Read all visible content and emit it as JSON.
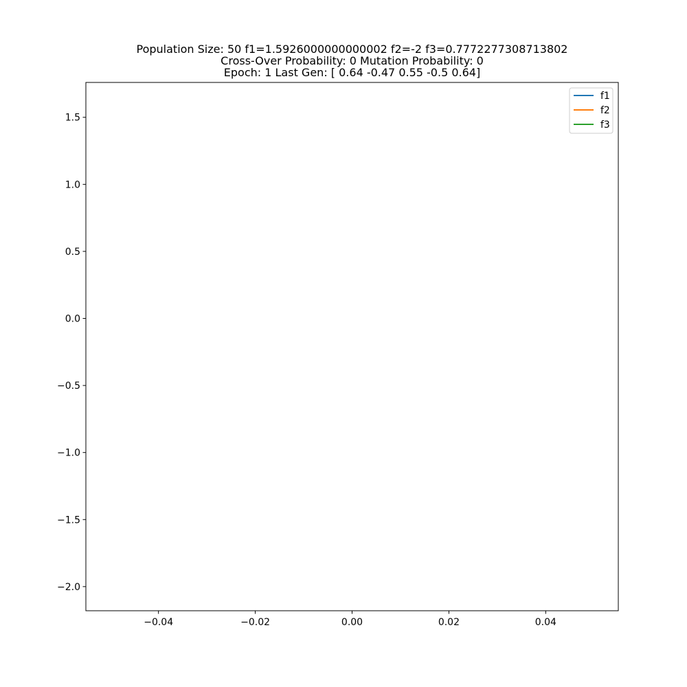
{
  "chart_data": {
    "type": "line",
    "title_lines": [
      "Population Size: 50 f1=1.5926000000000002 f2=-2 f3=0.7772277308713802",
      "Cross-Over Probability: 0 Mutation Probability: 0",
      "Epoch: 1 Last Gen: [ 0.64 -0.47  0.55 -0.5   0.64]"
    ],
    "xlabel": "",
    "ylabel": "",
    "xlim": [
      -0.055,
      0.055
    ],
    "ylim": [
      -2.18,
      1.76
    ],
    "xticks": [
      -0.04,
      -0.02,
      0.0,
      0.02,
      0.04
    ],
    "xtick_labels": [
      "−0.04",
      "−0.02",
      "0.00",
      "0.02",
      "0.04"
    ],
    "yticks": [
      1.5,
      1.0,
      0.5,
      0.0,
      -0.5,
      -1.0,
      -1.5,
      -2.0
    ],
    "ytick_labels": [
      "1.5",
      "1.0",
      "0.5",
      "0.0",
      "−0.5",
      "−1.0",
      "−1.5",
      "−2.0"
    ],
    "grid": false,
    "legend_position": "top-right",
    "series": [
      {
        "name": "f1",
        "color": "#1f77b4",
        "x": [
          0
        ],
        "y": [
          1.5926000000000002
        ]
      },
      {
        "name": "f2",
        "color": "#ff7f0e",
        "x": [
          0
        ],
        "y": [
          -2
        ]
      },
      {
        "name": "f3",
        "color": "#2ca02c",
        "x": [
          0
        ],
        "y": [
          0.7772277308713802
        ]
      }
    ]
  }
}
